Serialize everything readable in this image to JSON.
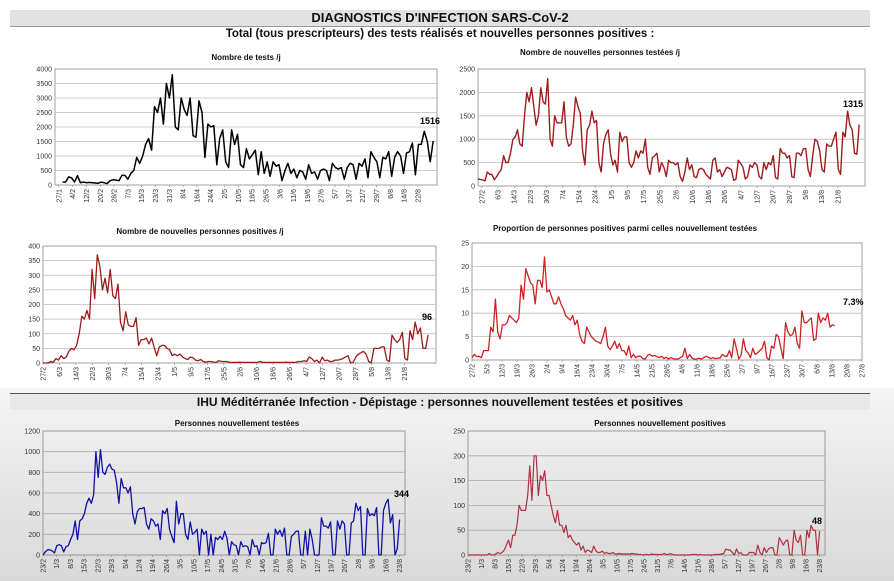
{
  "header": {
    "title": "DIAGNOSTICS D'INFECTION SARS-CoV-2",
    "subtitle": "Total (tous prescripteurs) des tests réalisés et nouvelles personnes positives :",
    "section_banner": "IHU Méditérranée Infection - Dépistage : personnes nouvellement testées et positives"
  },
  "chart_data": [
    {
      "type": "line",
      "title": "Nombre de tests /j",
      "color": "#000000",
      "ylim": [
        0,
        4000
      ],
      "ytick_step": 500,
      "yticks": [
        "0",
        "500",
        "1000",
        "1500",
        "2000",
        "2500",
        "3000",
        "3500",
        "4000"
      ],
      "xticks": [
        "27/1",
        "4/2",
        "12/2",
        "20/2",
        "28/2",
        "7/3",
        "15/3",
        "23/3",
        "31/3",
        "8/4",
        "16/4",
        "24/4",
        "2/5",
        "10/5",
        "18/5",
        "26/5",
        "3/6",
        "11/6",
        "19/6",
        "27/6",
        "5/7",
        "13/7",
        "21/7",
        "29/7",
        "6/8",
        "14/8",
        "22/8"
      ],
      "annotation": "1516",
      "values": [
        100,
        100,
        280,
        250,
        100,
        320,
        80,
        100,
        80,
        90,
        80,
        70,
        60,
        100,
        80,
        50,
        150,
        180,
        170,
        150,
        330,
        330,
        200,
        400,
        500,
        950,
        750,
        1000,
        1400,
        1600,
        1200,
        2700,
        2500,
        3000,
        2100,
        3500,
        3000,
        3800,
        2000,
        1900,
        3000,
        2600,
        2400,
        3000,
        1700,
        1650,
        2900,
        2500,
        950,
        2100,
        2000,
        2050,
        700,
        1600,
        1900,
        800,
        600,
        1900,
        1400,
        1750,
        700,
        600,
        1250,
        900,
        1050,
        1200,
        350,
        1150,
        400,
        800,
        300,
        800,
        650,
        700,
        150,
        500,
        750,
        400,
        550,
        250,
        500,
        450,
        200,
        700,
        400,
        450,
        200,
        500,
        550,
        500,
        150,
        750,
        600,
        550,
        600,
        200,
        600,
        750,
        700,
        200,
        750,
        650,
        900,
        250,
        1150,
        950,
        800,
        250,
        950,
        900,
        1150,
        300,
        950,
        1150,
        1000,
        400,
        1100,
        1150,
        1450,
        350,
        1400,
        1400,
        1850,
        1500,
        800,
        1516
      ]
    },
    {
      "type": "line",
      "title": "Nombre de nouvelles personnes testées /j",
      "color": "#a01c1c",
      "ylim": [
        0,
        2500
      ],
      "ytick_step": 500,
      "yticks": [
        "0",
        "500",
        "1000",
        "1500",
        "2000",
        "2500"
      ],
      "xticks": [
        "27/2",
        "6/3",
        "14/3",
        "22/3",
        "30/3",
        "7/4",
        "15/4",
        "23/4",
        "1/5",
        "9/5",
        "17/5",
        "25/5",
        "2/6",
        "10/6",
        "18/6",
        "26/6",
        "4/7",
        "12/7",
        "20/7",
        "28/7",
        "5/8",
        "13/8",
        "21/8"
      ],
      "annotation": "1315",
      "values": [
        150,
        140,
        130,
        110,
        300,
        250,
        250,
        130,
        200,
        280,
        350,
        650,
        500,
        500,
        700,
        1000,
        1050,
        1200,
        900,
        850,
        1500,
        2000,
        1800,
        2100,
        1700,
        1300,
        1500,
        2100,
        1800,
        1750,
        2300,
        1000,
        850,
        1500,
        1350,
        1350,
        1350,
        1800,
        1050,
        850,
        900,
        1300,
        1900,
        1700,
        1550,
        750,
        450,
        1200,
        1300,
        1600,
        1350,
        1400,
        500,
        300,
        900,
        1100,
        1200,
        700,
        450,
        550,
        300,
        1150,
        950,
        1050,
        1050,
        500,
        400,
        500,
        750,
        600,
        750,
        700,
        1000,
        400,
        250,
        600,
        650,
        700,
        300,
        500,
        400,
        200,
        550,
        500,
        500,
        450,
        500,
        200,
        100,
        300,
        600,
        350,
        450,
        200,
        180,
        350,
        380,
        350,
        250,
        200,
        150,
        550,
        600,
        300,
        350,
        200,
        300,
        400,
        380,
        350,
        120,
        150,
        550,
        480,
        400,
        150,
        200,
        450,
        400,
        500,
        450,
        200,
        150,
        500,
        350,
        500,
        450,
        650,
        180,
        150,
        800,
        700,
        700,
        600,
        650,
        200,
        180,
        700,
        700,
        650,
        800,
        800,
        350,
        200,
        650,
        1000,
        950,
        750,
        350,
        300,
        900,
        850,
        850,
        1000,
        1150,
        350,
        250,
        1150,
        1050,
        1600,
        1300,
        1200,
        700,
        680,
        1315
      ]
    },
    {
      "type": "line",
      "title": "Nombre de nouvelles personnes positives /j",
      "color": "#9b1b1b",
      "ylim": [
        0,
        400
      ],
      "ytick_step": 50,
      "yticks": [
        "0",
        "50",
        "100",
        "150",
        "200",
        "250",
        "300",
        "350",
        "400"
      ],
      "xticks": [
        "27/2",
        "6/3",
        "14/3",
        "22/3",
        "30/3",
        "7/4",
        "15/4",
        "23/4",
        "1/5",
        "9/5",
        "17/5",
        "25/5",
        "2/6",
        "10/6",
        "18/6",
        "26/6",
        "4/7",
        "12/7",
        "20/7",
        "28/7",
        "5/8",
        "13/8",
        "21/8"
      ],
      "annotation": "96",
      "values": [
        0,
        0,
        0,
        5,
        2,
        15,
        10,
        25,
        15,
        20,
        40,
        50,
        45,
        60,
        100,
        160,
        150,
        180,
        150,
        320,
        220,
        370,
        330,
        250,
        290,
        240,
        320,
        230,
        220,
        270,
        140,
        110,
        175,
        130,
        125,
        125,
        155,
        60,
        80,
        80,
        85,
        65,
        85,
        55,
        25,
        55,
        60,
        60,
        50,
        45,
        25,
        30,
        25,
        30,
        20,
        15,
        12,
        20,
        18,
        10,
        8,
        12,
        5,
        3,
        5,
        5,
        3,
        2,
        8,
        5,
        5,
        5,
        2,
        2,
        2,
        2,
        3,
        2,
        2,
        2,
        2,
        2,
        2,
        2,
        5,
        2,
        2,
        2,
        2,
        2,
        2,
        2,
        2,
        2,
        3,
        2,
        2,
        2,
        3,
        5,
        5,
        8,
        5,
        20,
        15,
        5,
        10,
        0,
        20,
        8,
        10,
        5,
        5,
        10,
        10,
        12,
        15,
        20,
        25,
        0,
        2,
        20,
        30,
        35,
        40,
        30,
        5,
        0,
        50,
        50,
        50,
        55,
        55,
        10,
        5,
        95,
        80,
        70,
        80,
        105,
        15,
        10,
        110,
        80,
        140,
        100,
        120,
        50,
        50,
        96
      ]
    },
    {
      "type": "line",
      "title": "Proportion de personnes positives parmi celles nouvellement testées",
      "color": "#cc2222",
      "ylim": [
        0,
        25
      ],
      "ytick_step": 5,
      "yticks": [
        "0",
        "5",
        "10",
        "15",
        "20",
        "25"
      ],
      "xticks": [
        "27/2",
        "5/3",
        "12/3",
        "19/3",
        "26/3",
        "2/4",
        "9/4",
        "16/4",
        "23/4",
        "30/4",
        "7/5",
        "14/5",
        "21/5",
        "28/5",
        "4/6",
        "11/6",
        "18/6",
        "25/6",
        "2/7",
        "9/7",
        "16/7",
        "23/7",
        "30/7",
        "6/8",
        "13/8",
        "20/8",
        "27/8"
      ],
      "annotation": "7.3%",
      "values": [
        0.5,
        1.2,
        0.7,
        0.8,
        0.5,
        2,
        2,
        2,
        7,
        6,
        13,
        6,
        4.5,
        7.5,
        7.5,
        8,
        9.5,
        9,
        8.5,
        8,
        9,
        16,
        13,
        19.5,
        18,
        16.5,
        16,
        12,
        17,
        17,
        15.5,
        22,
        14.5,
        15,
        13.5,
        12,
        12,
        13.5,
        12,
        11,
        9.5,
        9,
        8.5,
        9.5,
        7.5,
        8.5,
        5.5,
        4,
        3.5,
        7,
        6,
        5,
        4.5,
        4,
        3.8,
        3.5,
        5,
        7,
        3,
        2.2,
        3,
        4,
        2.5,
        3.5,
        2,
        2,
        1,
        3,
        0.5,
        1.2,
        0.5,
        0.8,
        0.8,
        0.3,
        0.2,
        1,
        1.2,
        0.8,
        1,
        0.7,
        0.5,
        0.8,
        0.3,
        0.6,
        0.2,
        0.5,
        0.3,
        0.2,
        0.2,
        0.5,
        0.8,
        2.5,
        0.3,
        1.2,
        0.4,
        0.2,
        0.2,
        0.4,
        0.2,
        0.5,
        0.8,
        0.6,
        0.3,
        0.5,
        0.3,
        0.4,
        0.4,
        1.2,
        0.8,
        0.8,
        2,
        0.5,
        4.5,
        2.5,
        0.2,
        1,
        4.5,
        2,
        1.5,
        0.5,
        2.5,
        1.2,
        1.5,
        2,
        2.5,
        4,
        0.5,
        0,
        3,
        2.5,
        5.5,
        5,
        2.5,
        0.3,
        8,
        6,
        5.2,
        5.5,
        7,
        3.5,
        2.5,
        10.5,
        8,
        8,
        8.5,
        9,
        4.2,
        4.5,
        10,
        8,
        9,
        8.5,
        10,
        7,
        7.5,
        7.3
      ]
    },
    {
      "type": "line",
      "title": "Personnes nouvellement testées",
      "color": "#1010a8",
      "ylim": [
        0,
        1200
      ],
      "ytick_step": 200,
      "yticks": [
        "0",
        "200",
        "400",
        "600",
        "800",
        "1000",
        "1200"
      ],
      "xticks": [
        "23/2",
        "1/3",
        "8/3",
        "15/3",
        "22/3",
        "29/3",
        "5/4",
        "12/4",
        "19/4",
        "26/4",
        "3/5",
        "10/5",
        "17/5",
        "24/5",
        "31/5",
        "7/6",
        "14/6",
        "21/6",
        "28/6",
        "5/7",
        "12/7",
        "19/7",
        "26/7",
        "2/8",
        "9/8",
        "16/8",
        "23/8"
      ],
      "annotation": "344",
      "values": [
        0,
        30,
        50,
        50,
        40,
        20,
        90,
        100,
        90,
        30,
        80,
        90,
        150,
        200,
        330,
        150,
        330,
        350,
        400,
        500,
        550,
        500,
        580,
        1000,
        750,
        1020,
        800,
        780,
        850,
        880,
        830,
        820,
        700,
        500,
        740,
        650,
        650,
        600,
        660,
        400,
        300,
        420,
        450,
        450,
        460,
        300,
        250,
        350,
        330,
        280,
        300,
        150,
        430,
        400,
        450,
        250,
        180,
        120,
        520,
        300,
        400,
        400,
        200,
        150,
        320,
        200,
        220,
        250,
        0,
        250,
        200,
        230,
        0,
        200,
        0,
        170,
        150,
        180,
        150,
        230,
        160,
        0,
        130,
        100,
        90,
        0,
        130,
        80,
        90,
        80,
        0,
        150,
        80,
        90,
        0,
        120,
        110,
        120,
        210,
        0,
        0,
        250,
        200,
        240,
        180,
        260,
        0,
        0,
        180,
        200,
        230,
        230,
        0,
        0,
        230,
        0,
        250,
        150,
        0,
        0,
        0,
        360,
        280,
        280,
        260,
        320,
        0,
        0,
        330,
        250,
        330,
        300,
        0,
        0,
        310,
        330,
        500,
        430,
        470,
        0,
        0,
        450,
        380,
        400,
        380,
        460,
        0,
        0,
        430,
        500,
        540,
        310,
        390,
        0,
        60,
        344
      ]
    },
    {
      "type": "line",
      "title": "Personnes nouvellement positives",
      "color": "#b03040",
      "ylim": [
        0,
        250
      ],
      "ytick_step": 50,
      "yticks": [
        "0",
        "50",
        "100",
        "150",
        "200",
        "250"
      ],
      "xticks": [
        "23/2",
        "1/3",
        "8/3",
        "15/3",
        "22/3",
        "29/3",
        "5/4",
        "12/4",
        "19/4",
        "26/4",
        "3/5",
        "10/5",
        "17/5",
        "24/5",
        "31/5",
        "7/6",
        "14/6",
        "21/6",
        "28/6",
        "5/7",
        "12/7",
        "19/7",
        "26/7",
        "2/8",
        "9/8",
        "16/8",
        "23/8"
      ],
      "annotation": "48",
      "values": [
        0,
        0,
        0,
        0,
        0,
        0,
        0,
        0,
        0,
        0,
        3,
        0,
        0,
        2,
        5,
        3,
        5,
        10,
        20,
        30,
        15,
        40,
        40,
        60,
        100,
        90,
        90,
        90,
        120,
        180,
        110,
        200,
        200,
        120,
        160,
        150,
        170,
        120,
        120,
        100,
        80,
        65,
        90,
        60,
        60,
        45,
        60,
        35,
        40,
        30,
        25,
        20,
        25,
        10,
        18,
        5,
        10,
        8,
        5,
        18,
        8,
        5,
        5,
        8,
        3,
        5,
        3,
        3,
        5,
        2,
        2,
        3,
        2,
        2,
        2,
        2,
        2,
        3,
        2,
        2,
        1,
        1,
        0,
        1,
        1,
        0,
        2,
        1,
        1,
        1,
        1,
        1,
        3,
        1,
        1,
        3,
        1,
        0,
        0,
        0,
        0,
        0,
        0,
        0,
        0,
        1,
        1,
        1,
        0,
        1,
        0,
        0,
        0,
        0,
        0,
        0,
        1,
        1,
        1,
        2,
        3,
        12,
        10,
        10,
        5,
        0,
        12,
        3,
        5,
        0,
        0,
        0,
        5,
        5,
        5,
        0,
        20,
        5,
        0,
        15,
        5,
        12,
        15,
        15,
        0,
        0,
        35,
        28,
        20,
        28,
        30,
        0,
        0,
        50,
        30,
        25,
        40,
        0,
        0,
        50,
        35,
        60,
        50,
        50,
        0,
        48
      ]
    }
  ]
}
